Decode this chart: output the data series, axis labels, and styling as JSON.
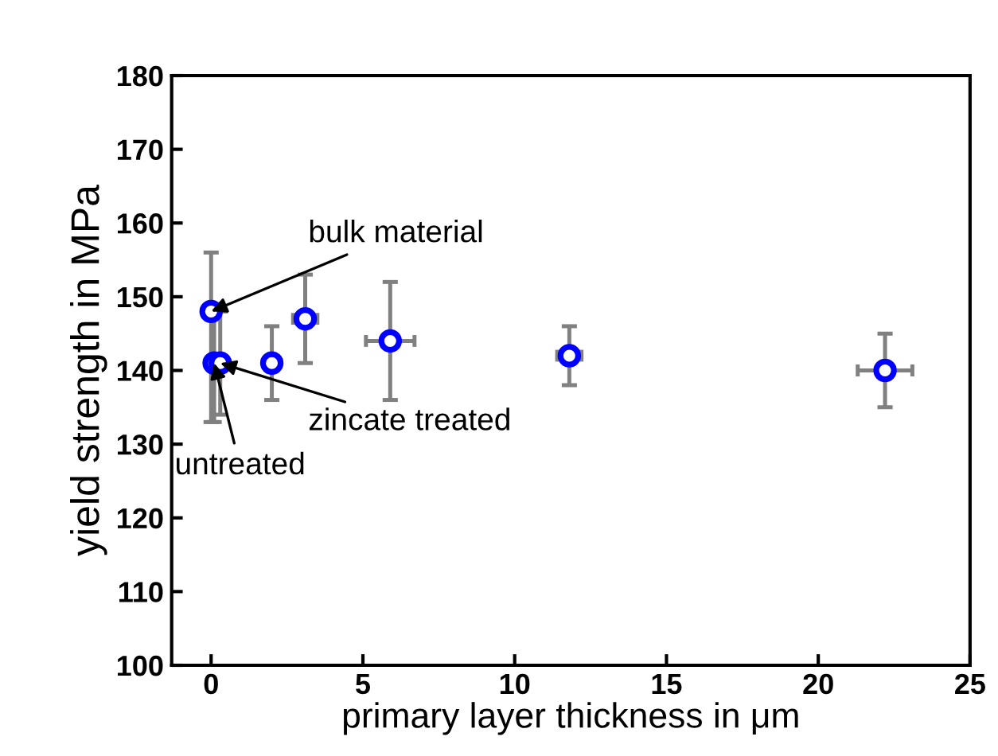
{
  "chart_data": {
    "type": "scatter",
    "xlabel": "primary layer thickness in μm",
    "ylabel": "yield strength in MPa",
    "x": [
      0,
      0.1,
      0.3,
      2,
      3.1,
      5.9,
      11.8,
      22.2
    ],
    "color": "#0000ff",
    "values": [
      148,
      141,
      141,
      141,
      147,
      144,
      142,
      140
    ],
    "errors": [
      [
        133,
        156
      ],
      8,
      7,
      5,
      6,
      8,
      4,
      5
    ],
    "xerrors": [
      null,
      null,
      null,
      null,
      0.4,
      0.8,
      0.4,
      0.9
    ],
    "xlim": [
      -1.3,
      25
    ],
    "xticks": [
      0,
      5,
      10,
      15,
      20,
      25
    ],
    "ylim": [
      100,
      180
    ],
    "yticks": [
      100,
      110,
      120,
      130,
      140,
      150,
      160,
      170,
      180
    ],
    "marker": "circle",
    "grid": false,
    "annotations": [
      {
        "text": "bulk material",
        "x": 0,
        "y": 148
      },
      {
        "text": "zincate treated",
        "x": 0.3,
        "y": 141
      },
      {
        "text": "untreated",
        "x": 0.1,
        "y": 141
      }
    ]
  }
}
